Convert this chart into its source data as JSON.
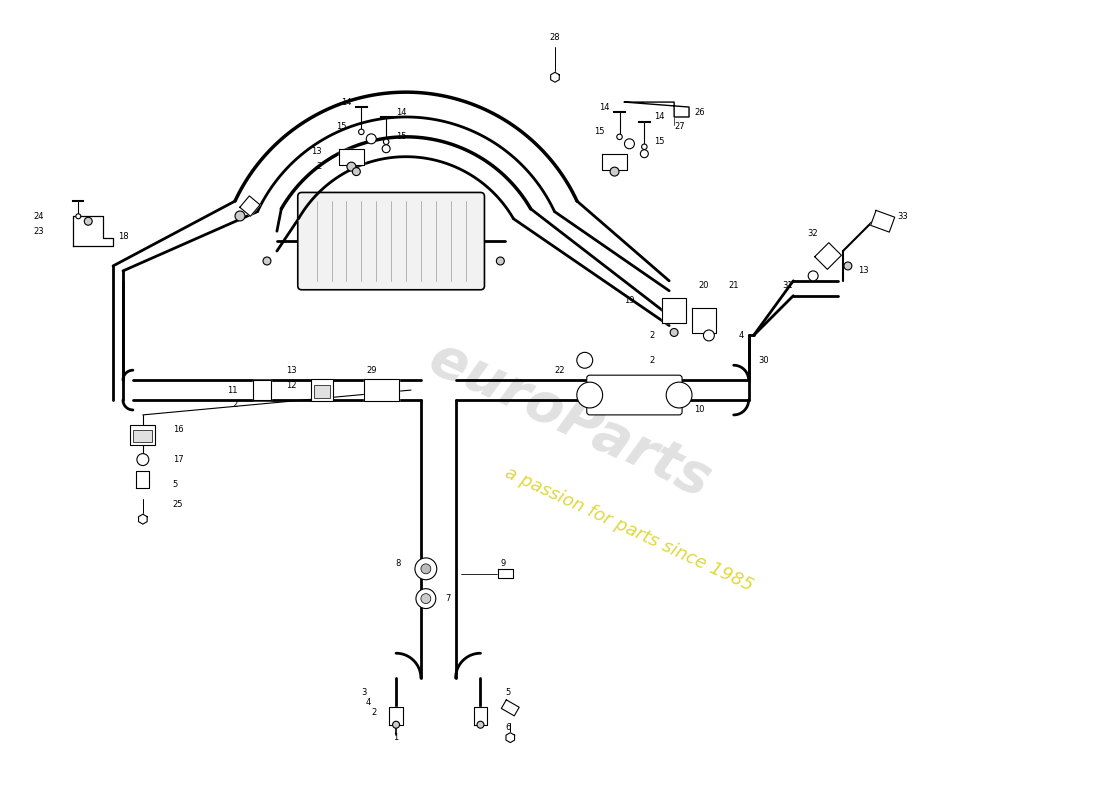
{
  "background_color": "#ffffff",
  "line_color": "#000000",
  "watermark_text": "euroParts",
  "watermark_subtext": "a passion for parts since 1985",
  "watermark_color": "#c8c8c8",
  "watermark_yellow": "#d4cc00",
  "fig_width": 11.0,
  "fig_height": 8.0,
  "dpi": 100
}
